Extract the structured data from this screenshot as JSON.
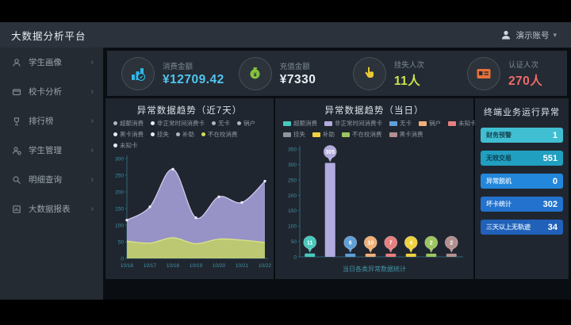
{
  "header": {
    "title": "大数据分析平台",
    "user_name": "演示账号",
    "user_caret": "▾"
  },
  "sidebar": {
    "chevron": "›",
    "items": [
      {
        "label": "学生画像",
        "icon": "student-portrait-icon"
      },
      {
        "label": "校卡分析",
        "icon": "campus-card-icon"
      },
      {
        "label": "排行榜",
        "icon": "ranking-icon"
      },
      {
        "label": "学生管理",
        "icon": "student-manage-icon"
      },
      {
        "label": "明细查询",
        "icon": "detail-query-icon"
      },
      {
        "label": "大数据报表",
        "icon": "bigdata-report-icon"
      }
    ]
  },
  "kpis": [
    {
      "label": "消费金额",
      "value": "¥12709.42",
      "icon": "consumption-amount-icon",
      "accent": "#2eb7ea",
      "value_color": "#52c5f0"
    },
    {
      "label": "充值金额",
      "value": "¥7330",
      "icon": "recharge-amount-icon",
      "accent": "#85c23d",
      "value_color": "#e8eef2"
    },
    {
      "label": "挂失人次",
      "value": "11人",
      "icon": "report-loss-icon",
      "accent": "#e9c935",
      "value_color": "#cfe24e"
    },
    {
      "label": "认证人次",
      "value": "270人",
      "icon": "authentication-icon",
      "accent": "#e87136",
      "value_color": "#ee6a6a"
    }
  ],
  "terminal_panel": {
    "title": "终端业务运行异常",
    "rows": [
      {
        "label": "财务预警",
        "value": "1",
        "bg": "#41bfd2"
      },
      {
        "label": "无效交易",
        "value": "551",
        "bg": "#219fc0"
      },
      {
        "label": "异常脱机",
        "value": "0",
        "bg": "#2387dc"
      },
      {
        "label": "坏卡统计",
        "value": "302",
        "bg": "#2372cd"
      },
      {
        "label": "三天以上无轨迹",
        "value": "34",
        "bg": "#2161b9"
      }
    ]
  },
  "chart_data": [
    {
      "type": "area",
      "title": "异常数据趋势（近7天）",
      "x": [
        "10/16",
        "10/17",
        "10/18",
        "10/19",
        "10/20",
        "10/21",
        "10/22"
      ],
      "series": [
        {
          "name": "非正常时间消费卡",
          "color": "#a29cd4",
          "stroke": "#cdc8ec",
          "values": [
            115,
            155,
            268,
            122,
            185,
            168,
            232
          ]
        },
        {
          "name": "不在校消费",
          "color": "#bfcc6a",
          "stroke": "#dce589",
          "values": [
            52,
            46,
            62,
            44,
            58,
            55,
            48
          ]
        }
      ],
      "legend": [
        {
          "label": "超额消费",
          "dot": "#aeb6c0",
          "row": 1
        },
        {
          "label": "非正常时间消费卡",
          "dot": "#e8edf2",
          "row": 1
        },
        {
          "label": "无卡",
          "dot": "#aeb6c0",
          "row": 1
        },
        {
          "label": "销户",
          "dot": "#aeb6c0",
          "row": 1
        },
        {
          "label": "黑卡消费",
          "dot": "#e8edf2",
          "row": 2
        },
        {
          "label": "挂失",
          "dot": "#e8edf2",
          "row": 2
        },
        {
          "label": "补助",
          "dot": "#aeb6c0",
          "row": 2
        },
        {
          "label": "不在校消费",
          "dot": "#cfe24e",
          "row": 2
        },
        {
          "label": "未知卡",
          "dot": "#e8edf2",
          "row": 3
        }
      ],
      "ylim": [
        0,
        300
      ],
      "ytick_step": 50,
      "grid": false,
      "legend_position": "top"
    },
    {
      "type": "bar",
      "title": "异常数据趋势（当日）",
      "categories": [
        "超额消费",
        "非正常时间消费卡",
        "无卡",
        "销户",
        "未知卡",
        "补助",
        "不在校消费",
        "黑卡消费"
      ],
      "values": [
        11,
        305,
        6,
        10,
        7,
        4,
        2,
        2
      ],
      "colors": [
        "#49c8bd",
        "#b2abdf",
        "#609fd8",
        "#f2af76",
        "#e87f7f",
        "#eed23f",
        "#9dc55f",
        "#b39090"
      ],
      "legend": [
        {
          "label": "超额消费",
          "color": "#49c8bd"
        },
        {
          "label": "非正常时间消费卡",
          "color": "#b2abdf"
        },
        {
          "label": "无卡",
          "color": "#609fd8"
        },
        {
          "label": "销户",
          "color": "#f2af76"
        },
        {
          "label": "未知卡",
          "color": "#e87f7f"
        },
        {
          "label": "挂失",
          "color": "#8f969e"
        },
        {
          "label": "补助",
          "color": "#eed23f"
        },
        {
          "label": "不在校消费",
          "color": "#9dc55f"
        },
        {
          "label": "黑卡消费",
          "color": "#b39090"
        }
      ],
      "ylim": [
        0,
        350
      ],
      "ytick_step": 50,
      "caption": "当日各类异常数据统计",
      "legend_position": "top"
    }
  ]
}
